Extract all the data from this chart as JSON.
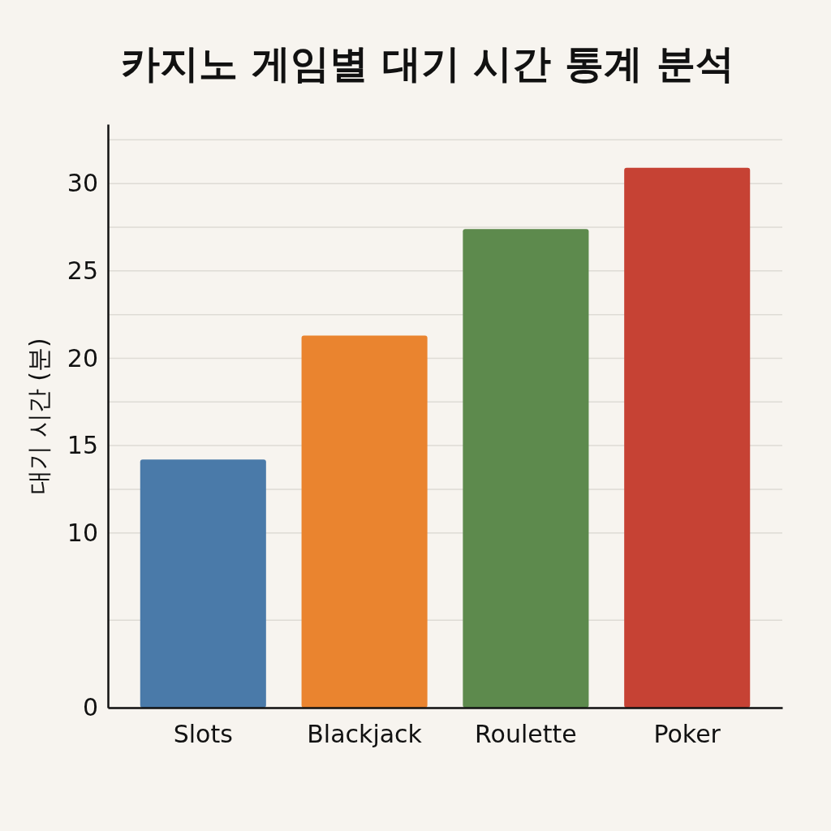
{
  "chart_data": {
    "type": "bar",
    "title": "카지노 게임별 대기 시간 통계 분석",
    "ylabel": "대기 시간 (분)",
    "categories": [
      "Slots",
      "Blackjack",
      "Roulette",
      "Poker"
    ],
    "values": [
      14.2,
      21.3,
      27.4,
      30.9
    ],
    "colors": [
      "#4a7aa9",
      "#ea842f",
      "#5d8a4d",
      "#c64234"
    ],
    "ylim": [
      0,
      33.4
    ],
    "yticks": [
      0,
      {
        "value": 5,
        "label": null
      },
      10,
      {
        "value": 12.5,
        "label": null
      },
      15,
      {
        "value": 17.5,
        "label": null
      },
      20,
      {
        "value": 22.5,
        "label": null
      },
      25,
      {
        "value": 27.5,
        "label": null
      },
      30,
      {
        "value": 32.5,
        "label": null
      }
    ],
    "grid": "y"
  }
}
